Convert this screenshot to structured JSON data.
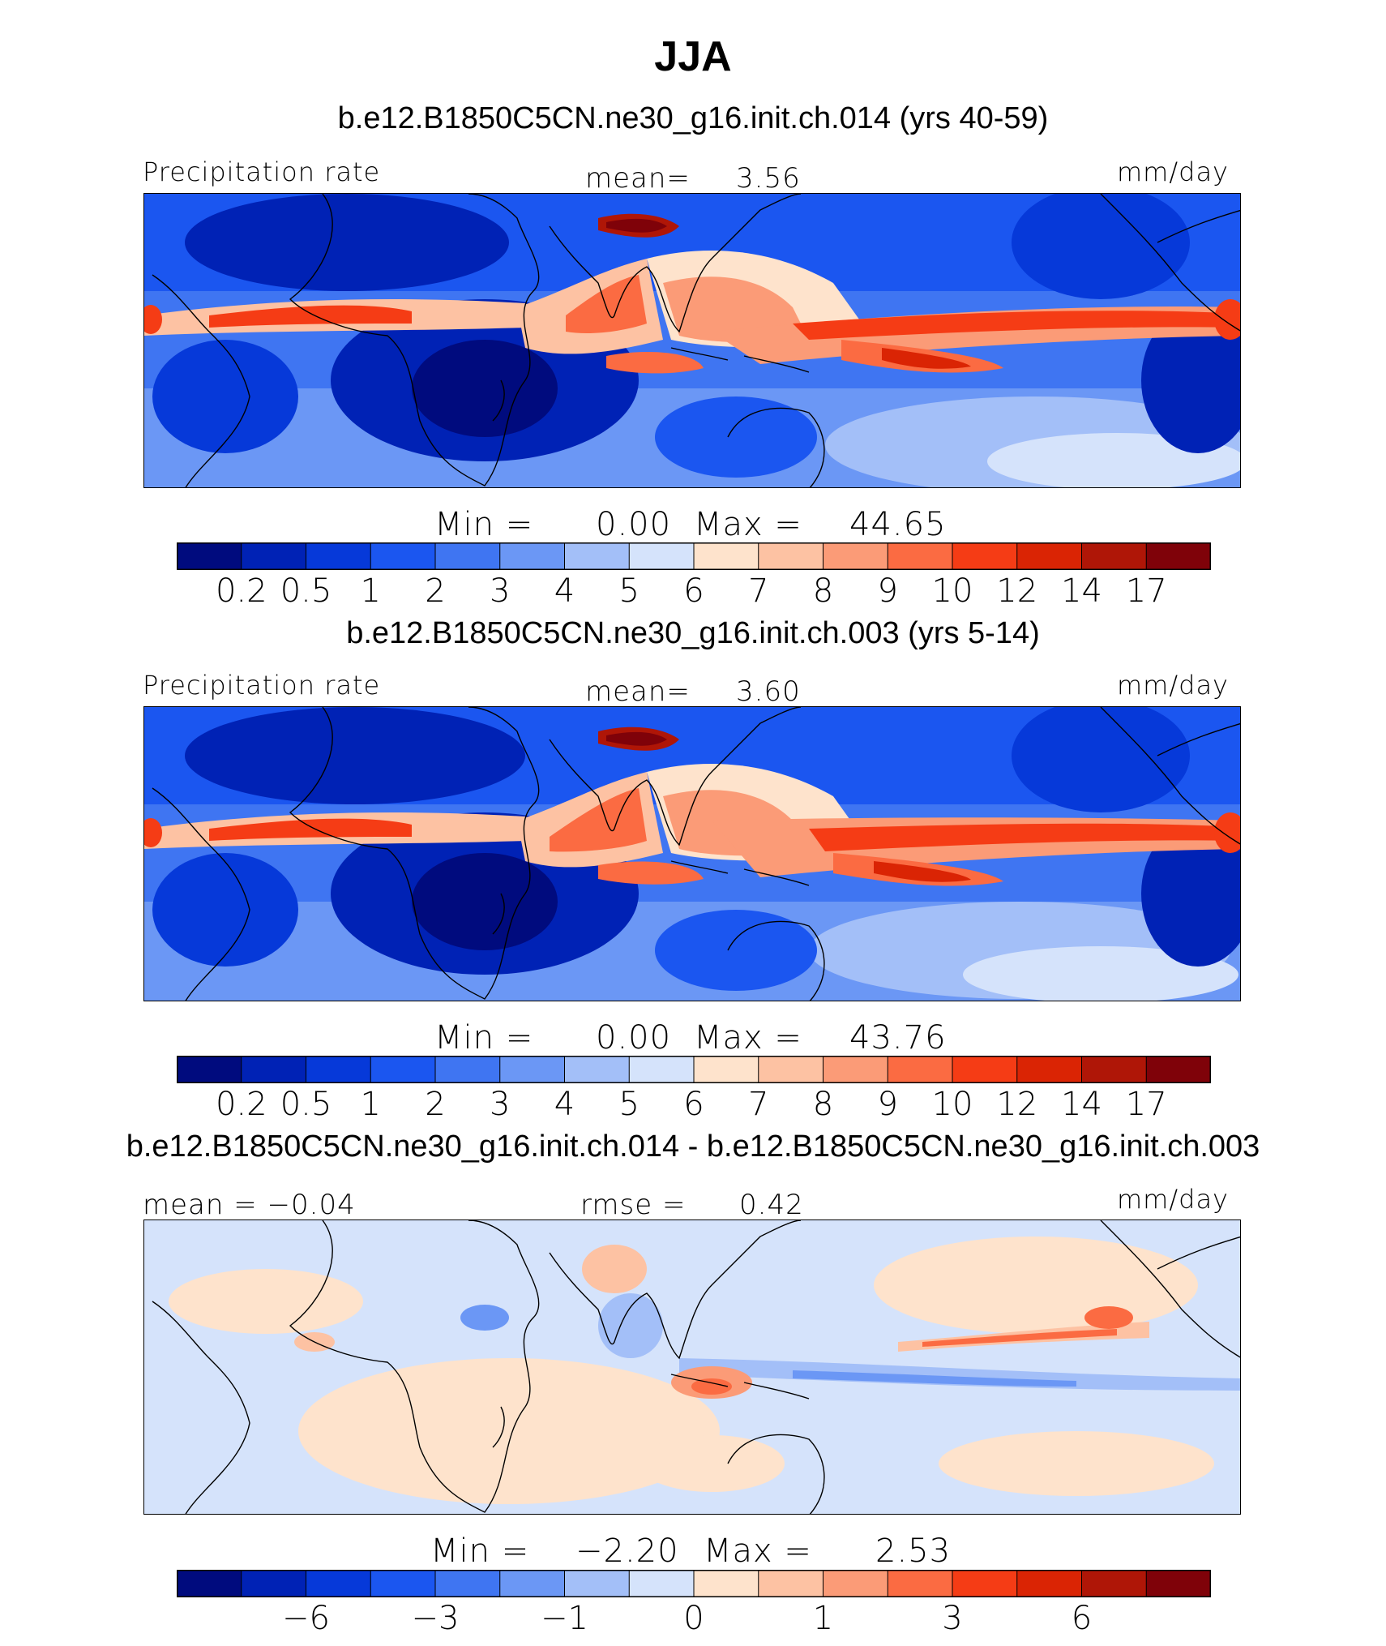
{
  "figure": {
    "title": "JJA",
    "colors": {
      "precip_palette": [
        "#000b7e",
        "#0022b5",
        "#0639d9",
        "#1b56f0",
        "#3f75f2",
        "#6b97f5",
        "#a3bff8",
        "#d5e3fb",
        "#fee3cc",
        "#fdc2a3",
        "#fb9b77",
        "#fb6b42",
        "#f53c15",
        "#da2404",
        "#af1607",
        "#7f0209"
      ],
      "diff_palette": [
        "#000b7e",
        "#0022b5",
        "#0639d9",
        "#1b56f0",
        "#3f75f2",
        "#6b97f5",
        "#a3bff8",
        "#d5e3fb",
        "#fee3cc",
        "#fdc2a3",
        "#fb9b77",
        "#fb6b42",
        "#f53c15",
        "#da2404",
        "#af1607",
        "#7f0209"
      ]
    }
  },
  "chart_data": [
    {
      "type": "heatmap",
      "title": "b.e12.B1850C5CN.ne30_g16.init.ch.014 (yrs 40-59)",
      "variable_label": "Precipitation  rate",
      "units": "mm/day",
      "stat_left": "",
      "stat_center_label": "mean=",
      "stat_center_value": "3.56",
      "min_label": "Min  =",
      "min_value": "0.00",
      "max_label": "Max  =",
      "max_value": "44.65",
      "colorbar_ticks": [
        "0.2",
        "0.5",
        "1",
        "2",
        "3",
        "4",
        "5",
        "6",
        "7",
        "8",
        "9",
        "10",
        "12",
        "14",
        "17"
      ],
      "colorbar_levels": [
        0.2,
        0.5,
        1,
        2,
        3,
        4,
        5,
        6,
        7,
        8,
        9,
        10,
        12,
        14,
        17
      ]
    },
    {
      "type": "heatmap",
      "title": "b.e12.B1850C5CN.ne30_g16.init.ch.003 (yrs 5-14)",
      "variable_label": "Precipitation  rate",
      "units": "mm/day",
      "stat_left": "",
      "stat_center_label": "mean=",
      "stat_center_value": "3.60",
      "min_label": "Min  =",
      "min_value": "0.00",
      "max_label": "Max  =",
      "max_value": "43.76",
      "colorbar_ticks": [
        "0.2",
        "0.5",
        "1",
        "2",
        "3",
        "4",
        "5",
        "6",
        "7",
        "8",
        "9",
        "10",
        "12",
        "14",
        "17"
      ],
      "colorbar_levels": [
        0.2,
        0.5,
        1,
        2,
        3,
        4,
        5,
        6,
        7,
        8,
        9,
        10,
        12,
        14,
        17
      ]
    },
    {
      "type": "heatmap",
      "title": "b.e12.B1850C5CN.ne30_g16.init.ch.014 - b.e12.B1850C5CN.ne30_g16.init.ch.003",
      "variable_label": "",
      "units": "mm/day",
      "stat_left": "mean  =   −0.04",
      "stat_center_label": "rmse  =",
      "stat_center_value": "0.42",
      "min_label": "Min  =",
      "min_value": "−2.20",
      "max_label": "Max  =",
      "max_value": "2.53",
      "colorbar_ticks": [
        "−6",
        "−3",
        "−1",
        "0",
        "1",
        "3",
        "6"
      ],
      "colorbar_levels": [
        -6,
        -3,
        -1,
        0,
        1,
        3,
        6
      ]
    }
  ]
}
